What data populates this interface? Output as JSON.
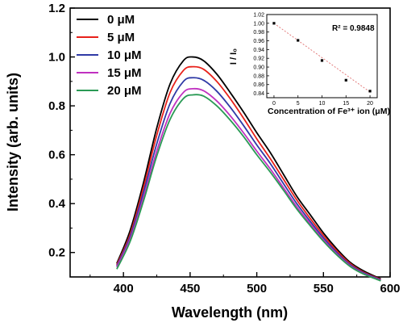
{
  "chart_data": [
    {
      "type": "line",
      "xlabel": "Wavelength (nm)",
      "ylabel": "Intensity (arb. units)",
      "xlim": [
        360,
        600
      ],
      "ylim": [
        0.1,
        1.2
      ],
      "x_ticks": [
        400,
        450,
        500,
        550,
        600
      ],
      "y_ticks": [
        0.2,
        0.4,
        0.6,
        0.8,
        1.0,
        1.2
      ],
      "legend_position": "top-left",
      "x": [
        395,
        405,
        415,
        425,
        435,
        445,
        452,
        460,
        470,
        480,
        490,
        500,
        510,
        520,
        530,
        540,
        550,
        560,
        570,
        580,
        593
      ],
      "series": [
        {
          "name": "0 μM",
          "color": "#000000",
          "values": [
            0.155,
            0.29,
            0.485,
            0.71,
            0.89,
            0.985,
            1.0,
            0.985,
            0.93,
            0.855,
            0.775,
            0.69,
            0.61,
            0.52,
            0.43,
            0.355,
            0.28,
            0.215,
            0.16,
            0.125,
            0.092
          ]
        },
        {
          "name": "5 μM",
          "color": "#e8211a",
          "values": [
            0.15,
            0.275,
            0.465,
            0.68,
            0.855,
            0.945,
            0.96,
            0.95,
            0.9,
            0.83,
            0.75,
            0.665,
            0.585,
            0.5,
            0.415,
            0.34,
            0.27,
            0.207,
            0.155,
            0.12,
            0.09
          ]
        },
        {
          "name": "10 μM",
          "color": "#2f3aa6",
          "values": [
            0.145,
            0.265,
            0.445,
            0.645,
            0.81,
            0.9,
            0.915,
            0.905,
            0.86,
            0.795,
            0.72,
            0.64,
            0.565,
            0.482,
            0.4,
            0.328,
            0.26,
            0.2,
            0.15,
            0.117,
            0.088
          ]
        },
        {
          "name": "15 μM",
          "color": "#c030c0",
          "values": [
            0.14,
            0.255,
            0.425,
            0.615,
            0.77,
            0.855,
            0.87,
            0.862,
            0.82,
            0.76,
            0.69,
            0.615,
            0.543,
            0.465,
            0.387,
            0.318,
            0.252,
            0.194,
            0.146,
            0.114,
            0.086
          ]
        },
        {
          "name": "20 μM",
          "color": "#2a9a55",
          "values": [
            0.132,
            0.245,
            0.41,
            0.595,
            0.745,
            0.83,
            0.845,
            0.84,
            0.8,
            0.742,
            0.675,
            0.6,
            0.53,
            0.455,
            0.378,
            0.31,
            0.246,
            0.19,
            0.143,
            0.112,
            0.084
          ]
        }
      ]
    },
    {
      "type": "scatter",
      "xlabel": "Concentration of Fe³⁺ ion (μM)",
      "ylabel": "I / I₀",
      "xlim": [
        -1.5,
        21.5
      ],
      "ylim": [
        0.83,
        1.02
      ],
      "x_ticks": [
        0,
        5,
        10,
        15,
        20
      ],
      "y_ticks": [
        0.84,
        0.86,
        0.88,
        0.9,
        0.92,
        0.94,
        0.96,
        0.98,
        1.0,
        1.02
      ],
      "annotation": "R² = 0.9848",
      "x": [
        0,
        5,
        10,
        15,
        20
      ],
      "values": [
        1.0,
        0.961,
        0.915,
        0.87,
        0.845
      ],
      "fit_line": {
        "x": [
          0,
          20
        ],
        "y": [
          1.0,
          0.843
        ]
      }
    }
  ]
}
